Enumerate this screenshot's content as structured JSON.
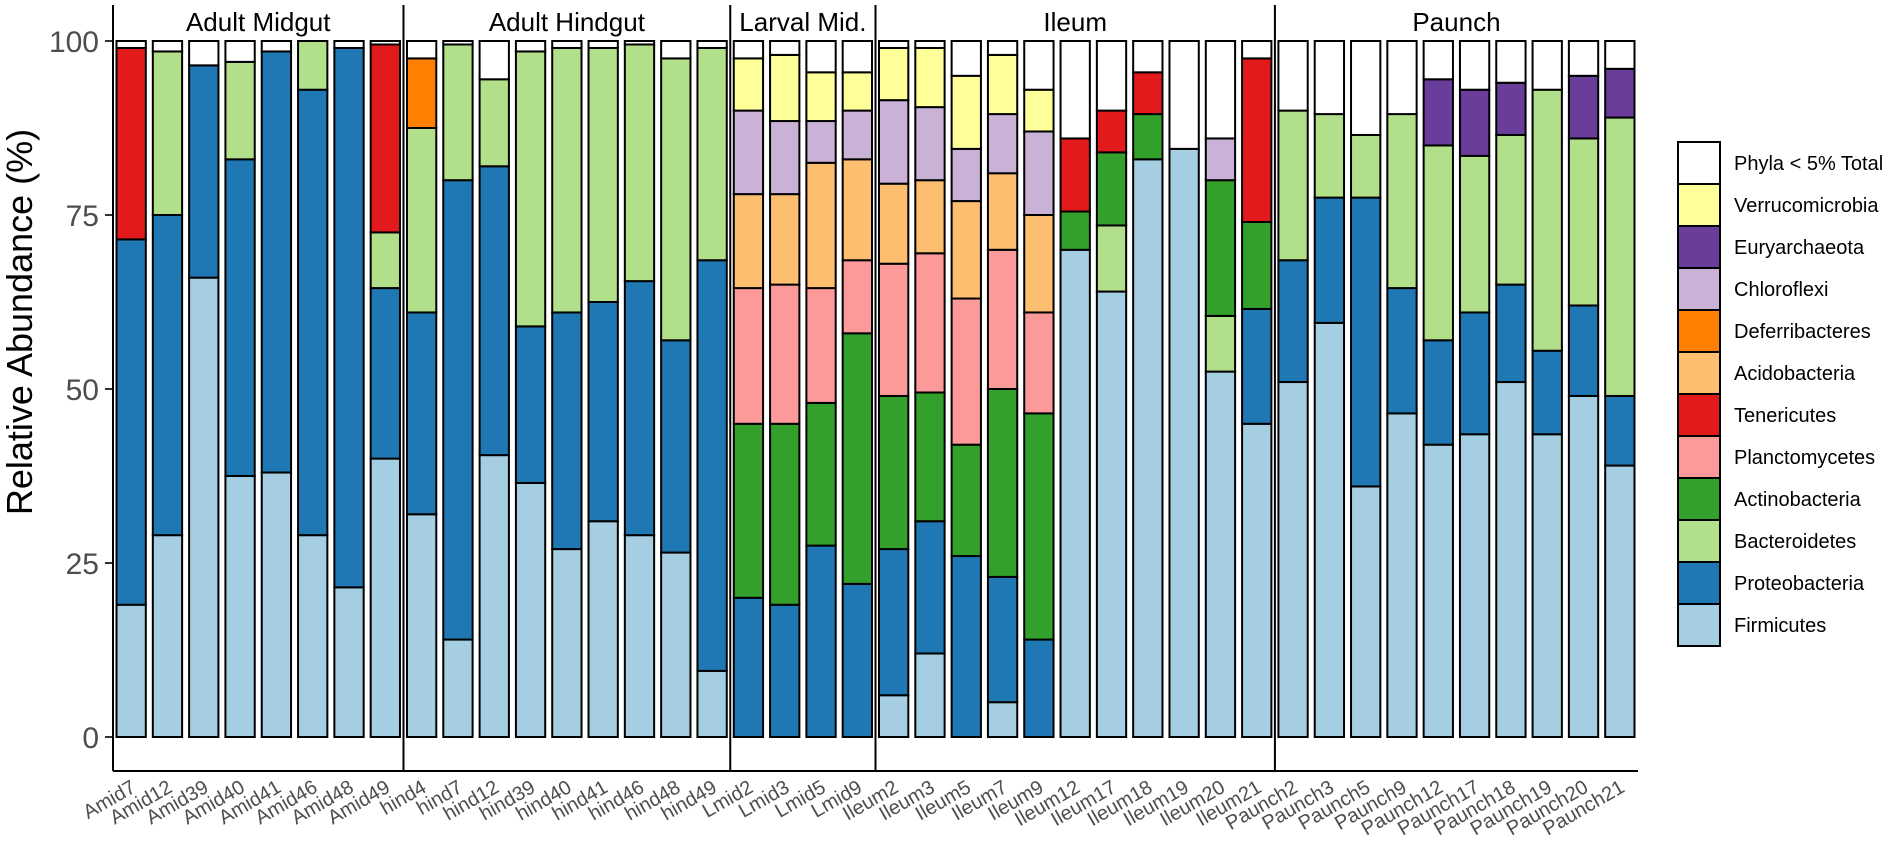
{
  "chart_data": {
    "type": "bar",
    "stacked": true,
    "title": "",
    "xlabel": "",
    "ylabel": "Relative Abundance (%)",
    "ylim": [
      0,
      100
    ],
    "yticks": [
      0,
      25,
      50,
      75,
      100
    ],
    "legend_position": "right",
    "phyla": [
      "Firmicutes",
      "Proteobacteria",
      "Bacteroidetes",
      "Actinobacteria",
      "Planctomycetes",
      "Tenericutes",
      "Acidobacteria",
      "Deferribacteres",
      "Chloroflexi",
      "Euryarchaeota",
      "Verrucomicrobia",
      "Phyla < 5% Total"
    ],
    "legend_order": [
      "Phyla < 5% Total",
      "Verrucomicrobia",
      "Euryarchaeota",
      "Chloroflexi",
      "Deferribacteres",
      "Acidobacteria",
      "Tenericutes",
      "Planctomycetes",
      "Actinobacteria",
      "Bacteroidetes",
      "Proteobacteria",
      "Firmicutes"
    ],
    "colors": {
      "Firmicutes": "#a6cee3",
      "Proteobacteria": "#1f78b4",
      "Bacteroidetes": "#b2df8a",
      "Actinobacteria": "#33a02c",
      "Planctomycetes": "#fb9a99",
      "Tenericutes": "#e31a1c",
      "Acidobacteria": "#fdbf6f",
      "Deferribacteres": "#ff7f00",
      "Chloroflexi": "#cab2d6",
      "Euryarchaeota": "#6a3d9a",
      "Verrucomicrobia": "#ffff99",
      "Phyla < 5% Total": "#ffffff"
    },
    "panels": [
      {
        "title": "Adult Midgut",
        "samples": [
          {
            "name": "Amid7",
            "values": {
              "Firmicutes": 19,
              "Proteobacteria": 52.5,
              "Tenericutes": 27.5,
              "Phyla < 5% Total": 1
            }
          },
          {
            "name": "Amid12",
            "values": {
              "Firmicutes": 29,
              "Proteobacteria": 46,
              "Bacteroidetes": 23.5,
              "Phyla < 5% Total": 1.5
            }
          },
          {
            "name": "Amid39",
            "values": {
              "Firmicutes": 66,
              "Proteobacteria": 30.5,
              "Phyla < 5% Total": 3.5
            }
          },
          {
            "name": "Amid40",
            "values": {
              "Firmicutes": 37.5,
              "Proteobacteria": 45.5,
              "Bacteroidetes": 14,
              "Phyla < 5% Total": 3
            }
          },
          {
            "name": "Amid41",
            "values": {
              "Firmicutes": 38,
              "Proteobacteria": 60.5,
              "Phyla < 5% Total": 1.5
            }
          },
          {
            "name": "Amid46",
            "values": {
              "Firmicutes": 29,
              "Proteobacteria": 64,
              "Bacteroidetes": 7
            }
          },
          {
            "name": "Amid48",
            "values": {
              "Firmicutes": 21.5,
              "Proteobacteria": 77.5,
              "Phyla < 5% Total": 1
            }
          },
          {
            "name": "Amid49",
            "values": {
              "Firmicutes": 40,
              "Proteobacteria": 24.5,
              "Bacteroidetes": 8,
              "Tenericutes": 27,
              "Phyla < 5% Total": 0.5
            }
          }
        ]
      },
      {
        "title": "Adult Hindgut",
        "samples": [
          {
            "name": "hind4",
            "values": {
              "Firmicutes": 32,
              "Proteobacteria": 29,
              "Bacteroidetes": 26.5,
              "Deferribacteres": 10,
              "Phyla < 5% Total": 2.5
            }
          },
          {
            "name": "hind7",
            "values": {
              "Firmicutes": 14,
              "Proteobacteria": 66,
              "Bacteroidetes": 19.5,
              "Phyla < 5% Total": 0.5
            }
          },
          {
            "name": "hind12",
            "values": {
              "Firmicutes": 40.5,
              "Proteobacteria": 41.5,
              "Bacteroidetes": 12.5,
              "Phyla < 5% Total": 5.5
            }
          },
          {
            "name": "hind39",
            "values": {
              "Firmicutes": 36.5,
              "Proteobacteria": 22.5,
              "Bacteroidetes": 39.5,
              "Phyla < 5% Total": 1.5
            }
          },
          {
            "name": "hind40",
            "values": {
              "Firmicutes": 27,
              "Proteobacteria": 34,
              "Bacteroidetes": 38,
              "Phyla < 5% Total": 1
            }
          },
          {
            "name": "hind41",
            "values": {
              "Firmicutes": 31,
              "Proteobacteria": 31.5,
              "Bacteroidetes": 36.5,
              "Phyla < 5% Total": 1
            }
          },
          {
            "name": "hind46",
            "values": {
              "Firmicutes": 29,
              "Proteobacteria": 36.5,
              "Bacteroidetes": 34,
              "Phyla < 5% Total": 0.5
            }
          },
          {
            "name": "hind48",
            "values": {
              "Firmicutes": 26.5,
              "Proteobacteria": 30.5,
              "Bacteroidetes": 40.5,
              "Phyla < 5% Total": 2.5
            }
          },
          {
            "name": "hind49",
            "values": {
              "Firmicutes": 9.5,
              "Proteobacteria": 59,
              "Bacteroidetes": 30.5,
              "Phyla < 5% Total": 1
            }
          }
        ]
      },
      {
        "title": "Larval Mid.",
        "samples": [
          {
            "name": "Lmid2",
            "values": {
              "Proteobacteria": 20,
              "Actinobacteria": 25,
              "Planctomycetes": 19.5,
              "Acidobacteria": 13.5,
              "Chloroflexi": 12,
              "Verrucomicrobia": 7.5,
              "Phyla < 5% Total": 2.5
            }
          },
          {
            "name": "Lmid3",
            "values": {
              "Proteobacteria": 19,
              "Actinobacteria": 26,
              "Planctomycetes": 20,
              "Acidobacteria": 13,
              "Chloroflexi": 10.5,
              "Verrucomicrobia": 9.5,
              "Phyla < 5% Total": 2
            }
          },
          {
            "name": "Lmid5",
            "values": {
              "Proteobacteria": 27.5,
              "Actinobacteria": 20.5,
              "Planctomycetes": 16.5,
              "Acidobacteria": 18,
              "Chloroflexi": 6,
              "Verrucomicrobia": 7,
              "Phyla < 5% Total": 4.5
            }
          },
          {
            "name": "Lmid9",
            "values": {
              "Proteobacteria": 22,
              "Actinobacteria": 36,
              "Planctomycetes": 10.5,
              "Acidobacteria": 14.5,
              "Chloroflexi": 7,
              "Verrucomicrobia": 5.5,
              "Phyla < 5% Total": 4.5
            }
          }
        ]
      },
      {
        "title": "Ileum",
        "samples": [
          {
            "name": "Ileum2",
            "values": {
              "Firmicutes": 6,
              "Proteobacteria": 21,
              "Actinobacteria": 22,
              "Planctomycetes": 19,
              "Acidobacteria": 11.5,
              "Chloroflexi": 12,
              "Verrucomicrobia": 7.5,
              "Phyla < 5% Total": 1
            }
          },
          {
            "name": "Ileum3",
            "values": {
              "Firmicutes": 12,
              "Proteobacteria": 19,
              "Actinobacteria": 18.5,
              "Planctomycetes": 20,
              "Acidobacteria": 10.5,
              "Chloroflexi": 10.5,
              "Verrucomicrobia": 8.5,
              "Phyla < 5% Total": 1
            }
          },
          {
            "name": "Ileum5",
            "values": {
              "Proteobacteria": 26,
              "Actinobacteria": 16,
              "Planctomycetes": 21,
              "Acidobacteria": 14,
              "Chloroflexi": 7.5,
              "Verrucomicrobia": 10.5,
              "Phyla < 5% Total": 5
            }
          },
          {
            "name": "Ileum7",
            "values": {
              "Firmicutes": 5,
              "Proteobacteria": 18,
              "Actinobacteria": 27,
              "Planctomycetes": 20,
              "Acidobacteria": 11,
              "Chloroflexi": 8.5,
              "Verrucomicrobia": 8.5,
              "Phyla < 5% Total": 2
            }
          },
          {
            "name": "Ileum9",
            "values": {
              "Proteobacteria": 14,
              "Actinobacteria": 32.5,
              "Planctomycetes": 14.5,
              "Acidobacteria": 14,
              "Chloroflexi": 12,
              "Verrucomicrobia": 6,
              "Phyla < 5% Total": 7
            }
          },
          {
            "name": "Ileum12",
            "values": {
              "Firmicutes": 70,
              "Actinobacteria": 5.5,
              "Tenericutes": 10.5,
              "Phyla < 5% Total": 14
            }
          },
          {
            "name": "Ileum17",
            "values": {
              "Firmicutes": 64,
              "Bacteroidetes": 9.5,
              "Actinobacteria": 10.5,
              "Tenericutes": 6,
              "Phyla < 5% Total": 10
            }
          },
          {
            "name": "Ileum18",
            "values": {
              "Firmicutes": 83,
              "Actinobacteria": 6.5,
              "Tenericutes": 6,
              "Phyla < 5% Total": 4.5
            }
          },
          {
            "name": "Ileum19",
            "values": {
              "Firmicutes": 84.5,
              "Phyla < 5% Total": 15.5
            }
          },
          {
            "name": "Ileum20",
            "values": {
              "Firmicutes": 52.5,
              "Bacteroidetes": 8,
              "Actinobacteria": 19.5,
              "Chloroflexi": 6,
              "Phyla < 5% Total": 14
            }
          },
          {
            "name": "Ileum21",
            "values": {
              "Firmicutes": 45,
              "Proteobacteria": 16.5,
              "Actinobacteria": 12.5,
              "Tenericutes": 23.5,
              "Phyla < 5% Total": 2.5
            }
          }
        ]
      },
      {
        "title": "Paunch",
        "samples": [
          {
            "name": "Paunch2",
            "values": {
              "Firmicutes": 51,
              "Proteobacteria": 17.5,
              "Bacteroidetes": 21.5,
              "Phyla < 5% Total": 10
            }
          },
          {
            "name": "Paunch3",
            "values": {
              "Firmicutes": 59.5,
              "Proteobacteria": 18,
              "Bacteroidetes": 12,
              "Phyla < 5% Total": 10.5
            }
          },
          {
            "name": "Paunch5",
            "values": {
              "Firmicutes": 36,
              "Proteobacteria": 41.5,
              "Bacteroidetes": 9,
              "Phyla < 5% Total": 13.5
            }
          },
          {
            "name": "Paunch9",
            "values": {
              "Firmicutes": 46.5,
              "Proteobacteria": 18,
              "Bacteroidetes": 25,
              "Phyla < 5% Total": 10.5
            }
          },
          {
            "name": "Paunch12",
            "values": {
              "Firmicutes": 42,
              "Proteobacteria": 15,
              "Bacteroidetes": 28,
              "Euryarchaeota": 9.5,
              "Phyla < 5% Total": 5.5
            }
          },
          {
            "name": "Paunch17",
            "values": {
              "Firmicutes": 43.5,
              "Proteobacteria": 17.5,
              "Bacteroidetes": 22.5,
              "Euryarchaeota": 9.5,
              "Phyla < 5% Total": 7
            }
          },
          {
            "name": "Paunch18",
            "values": {
              "Firmicutes": 51,
              "Proteobacteria": 14,
              "Bacteroidetes": 21.5,
              "Euryarchaeota": 7.5,
              "Phyla < 5% Total": 6
            }
          },
          {
            "name": "Paunch19",
            "values": {
              "Firmicutes": 43.5,
              "Proteobacteria": 12,
              "Bacteroidetes": 37.5,
              "Phyla < 5% Total": 7
            }
          },
          {
            "name": "Paunch20",
            "values": {
              "Firmicutes": 49,
              "Proteobacteria": 13,
              "Bacteroidetes": 24,
              "Euryarchaeota": 9,
              "Phyla < 5% Total": 5
            }
          },
          {
            "name": "Paunch21",
            "values": {
              "Firmicutes": 39,
              "Proteobacteria": 10,
              "Bacteroidetes": 40,
              "Euryarchaeota": 7,
              "Phyla < 5% Total": 4
            }
          }
        ]
      }
    ]
  }
}
